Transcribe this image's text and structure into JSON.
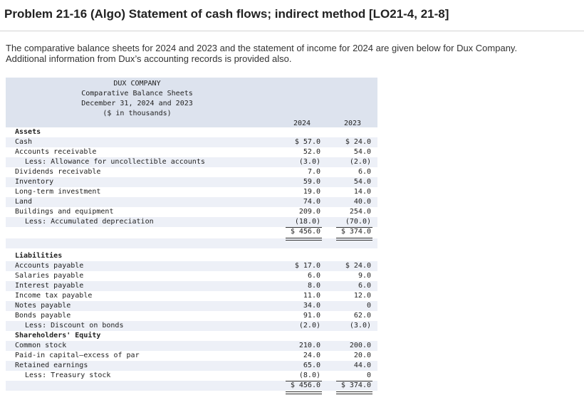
{
  "page": {
    "title": "Problem 21-16 (Algo) Statement of cash flows; indirect method [LO21-4, 21-8]",
    "intro_line1": "The comparative balance sheets for 2024 and 2023 and the statement of income for 2024 are given below for Dux Company.",
    "intro_line2": "Additional information from Dux’s accounting records is provided also."
  },
  "statement": {
    "company": "DUX COMPANY",
    "name": "Comparative Balance Sheets",
    "date": "December 31, 2024 and 2023",
    "units": "($ in thousands)",
    "col_2024": "2024",
    "col_2023": "2023",
    "rows": [
      {
        "label": "Assets",
        "bold": true
      },
      {
        "label": "Cash",
        "v2024": "$ 57.0",
        "v2023": "$ 24.0"
      },
      {
        "label": "Accounts receivable",
        "v2024": "52.0",
        "v2023": "54.0"
      },
      {
        "label": "Less: Allowance for uncollectible accounts",
        "indent": true,
        "v2024": "(3.0)",
        "v2023": "(2.0)"
      },
      {
        "label": "Dividends receivable",
        "v2024": "7.0",
        "v2023": "6.0"
      },
      {
        "label": "Inventory",
        "v2024": "59.0",
        "v2023": "54.0"
      },
      {
        "label": "Long-term investment",
        "v2024": "19.0",
        "v2023": "14.0"
      },
      {
        "label": "Land",
        "v2024": "74.0",
        "v2023": "40.0"
      },
      {
        "label": "Buildings and equipment",
        "v2024": "209.0",
        "v2023": "254.0"
      },
      {
        "label": "Less: Accumulated depreciation",
        "indent": true,
        "v2024": "(18.0)",
        "v2023": "(70.0)"
      },
      {
        "label": "",
        "v2024": "$ 456.0",
        "v2023": "$ 374.0"
      },
      {
        "label": ""
      },
      {
        "label": "Liabilities",
        "bold": true
      },
      {
        "label": "Accounts payable",
        "v2024": "$ 17.0",
        "v2023": "$ 24.0"
      },
      {
        "label": "Salaries payable",
        "v2024": "6.0",
        "v2023": "9.0"
      },
      {
        "label": "Interest payable",
        "v2024": "8.0",
        "v2023": "6.0"
      },
      {
        "label": "Income tax payable",
        "v2024": "11.0",
        "v2023": "12.0"
      },
      {
        "label": "Notes payable",
        "v2024": "34.0",
        "v2023": "0"
      },
      {
        "label": "Bonds payable",
        "v2024": "91.0",
        "v2023": "62.0"
      },
      {
        "label": "Less: Discount on bonds",
        "indent": true,
        "v2024": "(2.0)",
        "v2023": "(3.0)"
      },
      {
        "label": "Shareholders' Equity",
        "bold": true
      },
      {
        "label": "Common stock",
        "v2024": "210.0",
        "v2023": "200.0"
      },
      {
        "label": "Paid-in capital—excess of par",
        "v2024": "24.0",
        "v2023": "20.0"
      },
      {
        "label": "Retained earnings",
        "v2024": "65.0",
        "v2023": "44.0"
      },
      {
        "label": "Less: Treasury stock",
        "indent": true,
        "v2024": "(8.0)",
        "v2023": "0"
      },
      {
        "label": "",
        "v2024": "$ 456.0",
        "v2023": "$ 374.0"
      }
    ]
  }
}
